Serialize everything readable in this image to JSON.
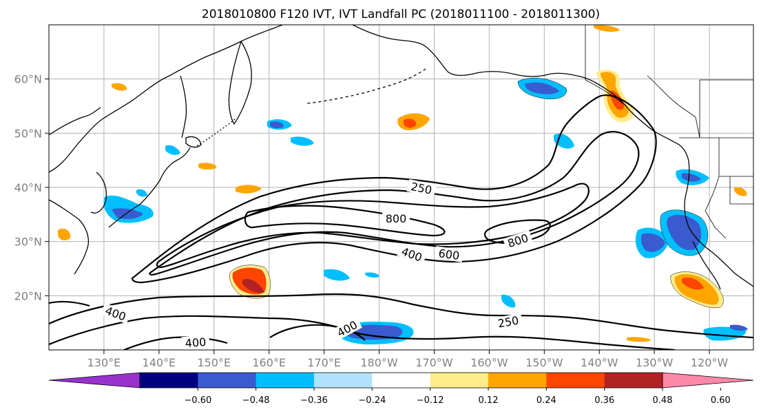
{
  "title": "2018010800 F120 IVT, IVT Landfall PC (2018011100 - 2018011300)",
  "map": {
    "lon_range": [
      120,
      -112
    ],
    "lat_range": [
      10,
      70
    ],
    "lat_ticks": [
      {
        "lat": 20,
        "label": "20°N"
      },
      {
        "lat": 30,
        "label": "30°N"
      },
      {
        "lat": 40,
        "label": "40°N"
      },
      {
        "lat": 50,
        "label": "50°N"
      },
      {
        "lat": 60,
        "label": "60°N"
      }
    ],
    "lon_ticks": [
      {
        "lon": 130,
        "label": "130°E"
      },
      {
        "lon": 140,
        "label": "140°E"
      },
      {
        "lon": 150,
        "label": "150°E"
      },
      {
        "lon": 160,
        "label": "160°E"
      },
      {
        "lon": 170,
        "label": "170°E"
      },
      {
        "lon": 180,
        "label": "180°W"
      },
      {
        "lon": 190,
        "label": "170°W"
      },
      {
        "lon": 200,
        "label": "160°W"
      },
      {
        "lon": 210,
        "label": "150°W"
      },
      {
        "lon": 220,
        "label": "140°W"
      },
      {
        "lon": 230,
        "label": "130°W"
      },
      {
        "lon": 240,
        "label": "120°W"
      }
    ],
    "grid": true
  },
  "contour_labels": [
    {
      "text": "250"
    },
    {
      "text": "800"
    },
    {
      "text": "800"
    },
    {
      "text": "400"
    },
    {
      "text": "600"
    },
    {
      "text": "400"
    },
    {
      "text": "400"
    },
    {
      "text": "400"
    },
    {
      "text": "250"
    }
  ],
  "colorbar": {
    "tick_labels": [
      "−0.60",
      "−0.48",
      "−0.36",
      "−0.24",
      "−0.12",
      "0.12",
      "0.24",
      "0.36",
      "0.48",
      "0.60"
    ],
    "colors": [
      "#9932CC",
      "#000080",
      "#3A5BCD",
      "#00BFFF",
      "#B0E2FF",
      "#FFFFFF",
      "#FFEC8B",
      "#FFA500",
      "#FF4500",
      "#B22222",
      "#FF88AA"
    ]
  }
}
